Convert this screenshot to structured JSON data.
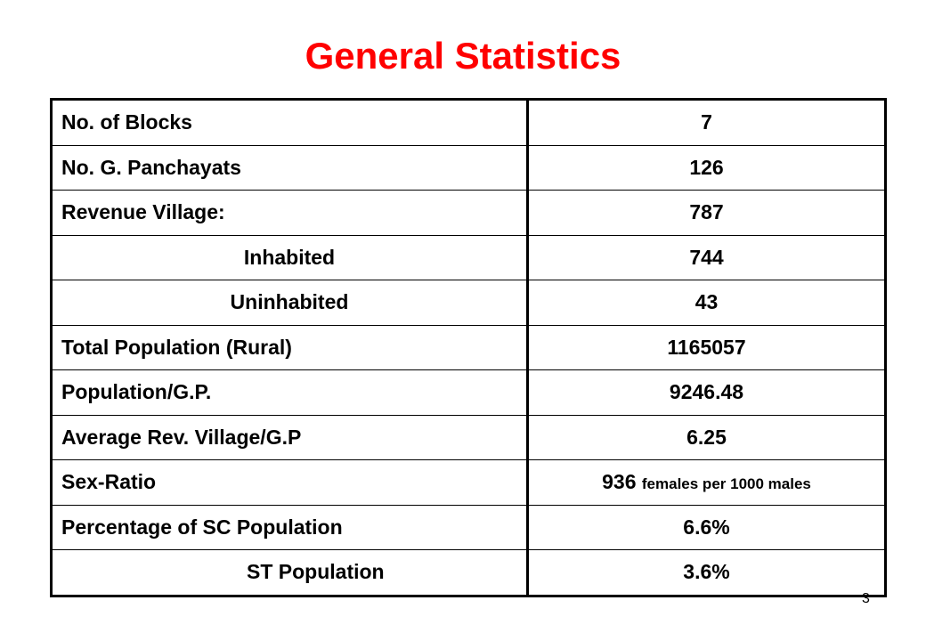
{
  "title": "General Statistics",
  "rows": [
    {
      "label": "No. of Blocks",
      "value": "7",
      "suffix": ""
    },
    {
      "label": "No. G. Panchayats",
      "value": "126",
      "suffix": ""
    },
    {
      "label": "Revenue Village:",
      "value": "787",
      "suffix": ""
    },
    {
      "label": "Inhabited",
      "value": "744",
      "suffix": ""
    },
    {
      "label": "Uninhabited",
      "value": "43",
      "suffix": ""
    },
    {
      "label": "Total Population (Rural)",
      "value": "1165057",
      "suffix": ""
    },
    {
      "label": "Population/G.P.",
      "value": "9246.48",
      "suffix": ""
    },
    {
      "label": "Average Rev. Village/G.P",
      "value": "6.25",
      "suffix": ""
    },
    {
      "label": "Sex-Ratio",
      "value": "936",
      "suffix": "females per 1000 males"
    },
    {
      "label": "Percentage of SC Population",
      "value": "6.6%",
      "suffix": ""
    },
    {
      "label": "ST Population",
      "value": "3.6%",
      "suffix": ""
    }
  ],
  "page_number": "3"
}
